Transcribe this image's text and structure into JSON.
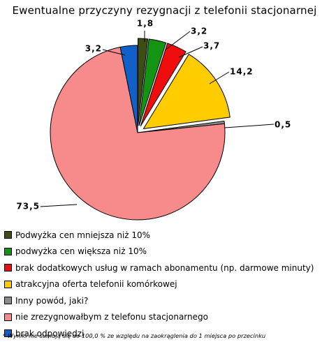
{
  "chart_data": {
    "type": "pie",
    "title": "Ewentualne przyczyny rezygnacji z telefonii stacjonarnej",
    "slices": [
      {
        "label": "Podwyżka cen mniejsza niż 10%",
        "value": 1.8,
        "value_label": "1,8",
        "color": "#3d4d13",
        "exploded": true
      },
      {
        "label": "podwyżka cen większa niż 10%",
        "value": 3.2,
        "value_label": "3,2",
        "color": "#139413",
        "exploded": true
      },
      {
        "label": "brak dodatkowych usług w ramach abonamentu (np. darmowe minuty)",
        "value": 3.7,
        "value_label": "3,7",
        "color": "#f00d0d",
        "exploded": true
      },
      {
        "label": "atrakcyjna oferta telefonii komórkowej",
        "value": 14.2,
        "value_label": "14,2",
        "color": "#ffcc00",
        "exploded": true
      },
      {
        "label": "Inny powód, jaki?",
        "value": 0.5,
        "value_label": "0,5",
        "color": "#8c8c8c",
        "exploded": false
      },
      {
        "label": "nie zrezygnowałbym z telefonu stacjonarnego",
        "value": 73.5,
        "value_label": "73,5",
        "color": "#f78a8a",
        "exploded": false
      },
      {
        "label": "brak odpowiedzi",
        "value": 3.2,
        "value_label": "3,2",
        "color": "#1060c8",
        "exploded": false
      }
    ],
    "legend_position": "bottom",
    "footnote": "* Wyniki nie sumują się do 100,0 % ze względu na zaokrąglenia do 1 miejsca po przecinku"
  }
}
